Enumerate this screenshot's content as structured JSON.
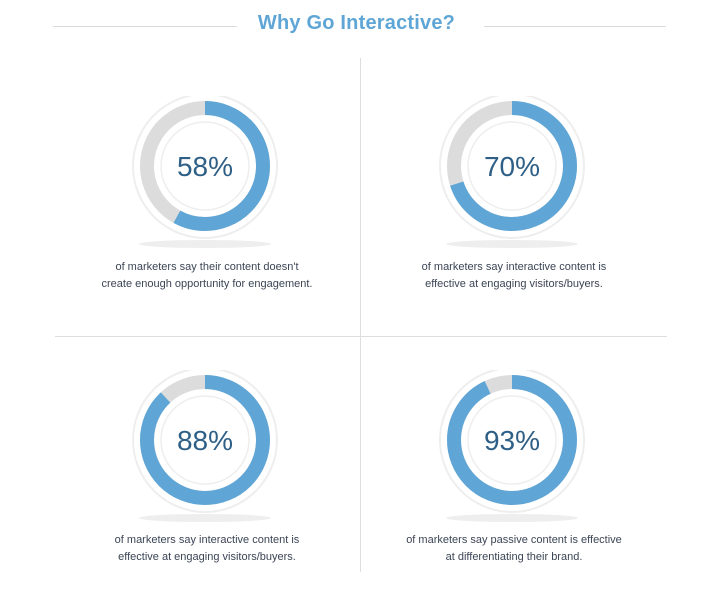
{
  "header": {
    "title": "Why Go Interactive?"
  },
  "colors": {
    "accent": "#5fa6d6",
    "track": "#dcdcdc",
    "percent_text": "#2e5f86",
    "caption_text": "#3b4555"
  },
  "chart_data": {
    "type": "donut",
    "items": [
      {
        "label": "58%",
        "value": 58,
        "caption_lines": [
          "of marketers say their content doesn't",
          "create enough opportunity for engagement."
        ]
      },
      {
        "label": "70%",
        "value": 70,
        "caption_lines": [
          "of marketers say interactive content is",
          "effective at engaging visitors/buyers."
        ]
      },
      {
        "label": "88%",
        "value": 88,
        "caption_lines": [
          "of marketers say interactive content is",
          "effective at engaging visitors/buyers."
        ]
      },
      {
        "label": "93%",
        "value": 93,
        "caption_lines": [
          "of marketers say passive content is effective",
          "at differentiating their brand."
        ]
      }
    ]
  }
}
